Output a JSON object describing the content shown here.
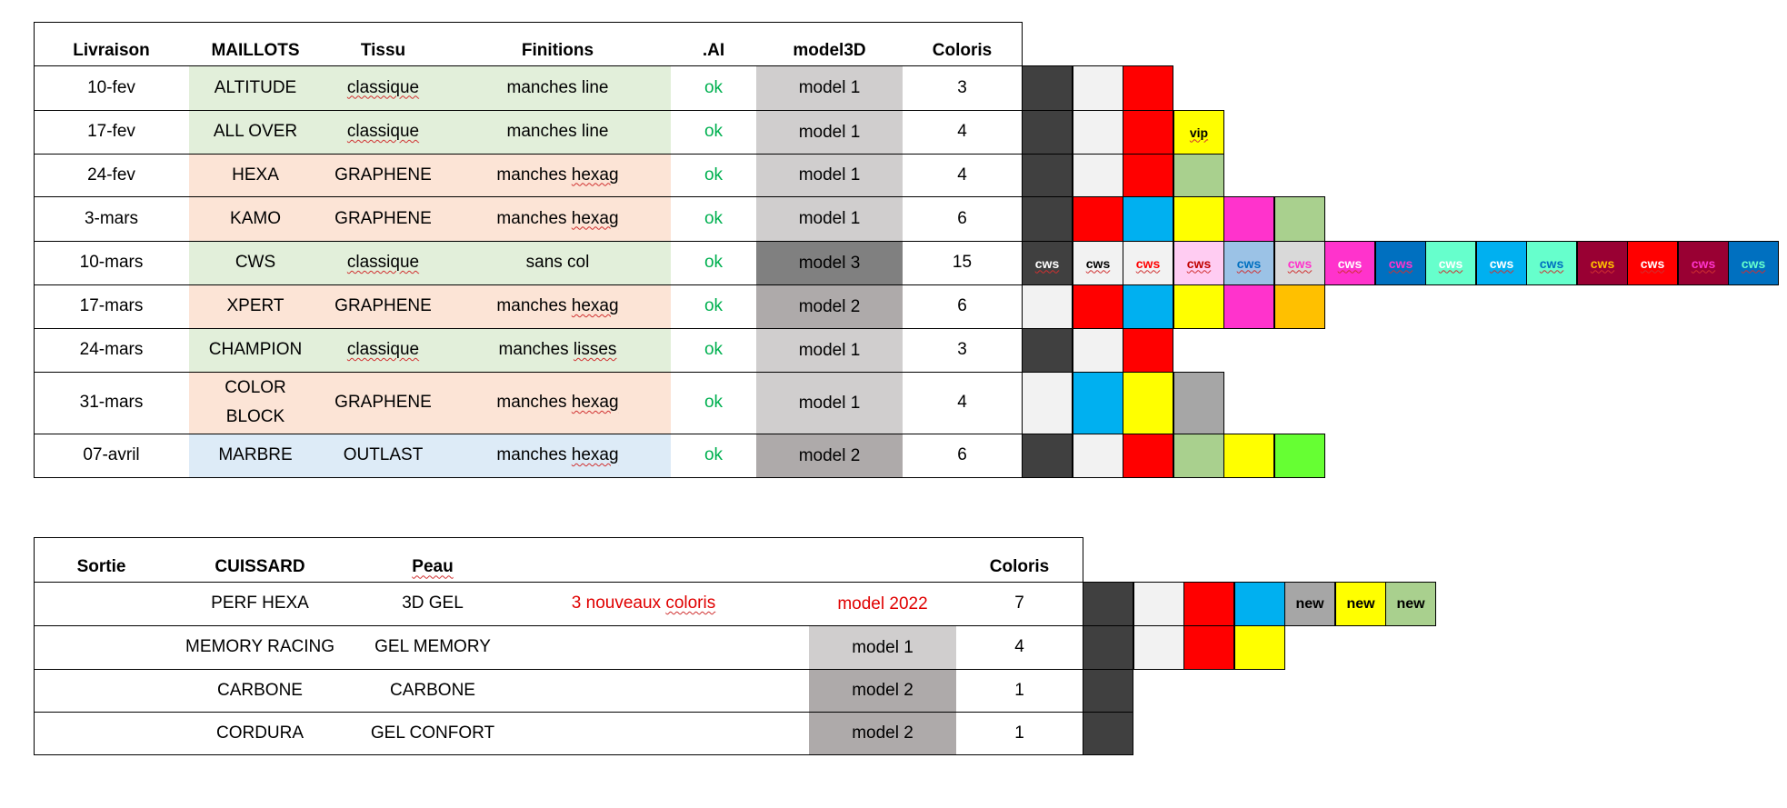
{
  "colors": {
    "light_green": "#e2efda",
    "light_orange": "#fce4d6",
    "light_blue": "#ddebf7",
    "gray_1": "#d0cece",
    "gray_2": "#aeaaaa",
    "gray_3": "#808080",
    "ok_green": "#00b050",
    "red_text": "#e00000"
  },
  "maillots": {
    "headers": {
      "livraison": "Livraison",
      "maillots": "MAILLOTS",
      "tissu": "Tissu",
      "finitions": "Finitions",
      "ai": ".AI",
      "model3d": "model3D",
      "coloris": "Coloris"
    },
    "rows": [
      {
        "livraison": "10-fev",
        "maillot": "ALTITUDE",
        "tissu": "classique",
        "finitions": "manches line",
        "ai": "ok",
        "model": "model 1",
        "coloris": "3",
        "bg": "light_green",
        "model_bg": "gray_1",
        "swatches": [
          {
            "color": "#404040"
          },
          {
            "color": "#f2f2f2"
          },
          {
            "color": "#ff0000"
          }
        ]
      },
      {
        "livraison": "17-fev",
        "maillot": "ALL OVER",
        "tissu": "classique",
        "finitions": "manches line",
        "ai": "ok",
        "model": "model 1",
        "coloris": "4",
        "bg": "light_green",
        "model_bg": "gray_1",
        "swatches": [
          {
            "color": "#404040"
          },
          {
            "color": "#f2f2f2"
          },
          {
            "color": "#ff0000"
          },
          {
            "color": "#ffff00",
            "label": "vip",
            "label_color": "#000000"
          }
        ]
      },
      {
        "livraison": "24-fev",
        "maillot": "HEXA",
        "tissu": "GRAPHENE",
        "finitions": "manches hexag",
        "ai": "ok",
        "model": "model 1",
        "coloris": "4",
        "bg": "light_orange",
        "model_bg": "gray_1",
        "swatches": [
          {
            "color": "#404040"
          },
          {
            "color": "#f2f2f2"
          },
          {
            "color": "#ff0000"
          },
          {
            "color": "#a9d08e"
          }
        ]
      },
      {
        "livraison": "3-mars",
        "maillot": "KAMO",
        "tissu": "GRAPHENE",
        "finitions": "manches hexag",
        "ai": "ok",
        "model": "model 1",
        "coloris": "6",
        "bg": "light_orange",
        "model_bg": "gray_1",
        "swatches": [
          {
            "color": "#404040"
          },
          {
            "color": "#ff0000"
          },
          {
            "color": "#00b0f0"
          },
          {
            "color": "#ffff00"
          },
          {
            "color": "#ff33cc"
          },
          {
            "color": "#a9d08e"
          }
        ]
      },
      {
        "livraison": "10-mars",
        "maillot": "CWS",
        "tissu": "classique",
        "finitions": "sans col",
        "ai": "ok",
        "model": "model 3",
        "coloris": "15",
        "bg": "light_green",
        "model_bg": "gray_3",
        "swatches": [
          {
            "color": "#404040",
            "label": "cws",
            "label_color": "#ffffff"
          },
          {
            "color": "#f2f2f2",
            "label": "cws",
            "label_color": "#000000"
          },
          {
            "color": "#f2f2f2",
            "label": "cws",
            "label_color": "#ff0000"
          },
          {
            "color": "#ffccf2",
            "label": "cws",
            "label_color": "#c00000"
          },
          {
            "color": "#9bc2e6",
            "label": "cws",
            "label_color": "#0070c0"
          },
          {
            "color": "#d9d9d9",
            "label": "cws",
            "label_color": "#ff33cc"
          },
          {
            "color": "#ff33cc",
            "label": "cws",
            "label_color": "#ffffff"
          },
          {
            "color": "#0070c0",
            "label": "cws",
            "label_color": "#ff33cc"
          },
          {
            "color": "#66ffcc",
            "label": "cws",
            "label_color": "#ffffff"
          },
          {
            "color": "#00b0f0",
            "label": "cws",
            "label_color": "#ffffff"
          },
          {
            "color": "#66ffcc",
            "label": "cws",
            "label_color": "#0070c0"
          },
          {
            "color": "#990033",
            "label": "cws",
            "label_color": "#ffc000"
          },
          {
            "color": "#ff0000",
            "label": "cws",
            "label_color": "#ffffff"
          },
          {
            "color": "#990033",
            "label": "cws",
            "label_color": "#ff33cc"
          },
          {
            "color": "#0070c0",
            "label": "cws",
            "label_color": "#66ffcc"
          }
        ]
      },
      {
        "livraison": "17-mars",
        "maillot": "XPERT",
        "tissu": "GRAPHENE",
        "finitions": "manches hexag",
        "ai": "ok",
        "model": "model 2",
        "coloris": "6",
        "bg": "light_orange",
        "model_bg": "gray_2",
        "swatches": [
          {
            "color": "#f2f2f2"
          },
          {
            "color": "#ff0000"
          },
          {
            "color": "#00b0f0"
          },
          {
            "color": "#ffff00"
          },
          {
            "color": "#ff33cc"
          },
          {
            "color": "#ffc000"
          }
        ]
      },
      {
        "livraison": "24-mars",
        "maillot": "CHAMPION",
        "tissu": "classique",
        "finitions": "manches lisses",
        "ai": "ok",
        "model": "model 1",
        "coloris": "3",
        "bg": "light_green",
        "model_bg": "gray_1",
        "swatches": [
          {
            "color": "#404040"
          },
          {
            "color": "#f2f2f2"
          },
          {
            "color": "#ff0000"
          }
        ]
      },
      {
        "livraison": "31-mars",
        "maillot": "COLOR BLOCK",
        "maillot_line1": "COLOR",
        "maillot_line2": "BLOCK",
        "tissu": "GRAPHENE",
        "finitions": "manches hexag",
        "ai": "ok",
        "model": "model 1",
        "coloris": "4",
        "bg": "light_orange",
        "model_bg": "gray_1",
        "swatches": [
          {
            "color": "#f2f2f2"
          },
          {
            "color": "#00b0f0"
          },
          {
            "color": "#ffff00"
          },
          {
            "color": "#a6a6a6"
          }
        ]
      },
      {
        "livraison": "07-avril",
        "maillot": "MARBRE",
        "tissu": "OUTLAST",
        "finitions": "manches hexag",
        "ai": "ok",
        "model": "model 2",
        "coloris": "6",
        "bg": "light_blue",
        "model_bg": "gray_2",
        "swatches": [
          {
            "color": "#404040"
          },
          {
            "color": "#f2f2f2"
          },
          {
            "color": "#ff0000"
          },
          {
            "color": "#a9d08e"
          },
          {
            "color": "#ffff00"
          },
          {
            "color": "#66ff33"
          }
        ]
      }
    ]
  },
  "cuissards": {
    "headers": {
      "sortie": "Sortie",
      "cuissard": "CUISSARD",
      "peau": "Peau",
      "coloris": "Coloris"
    },
    "rows": [
      {
        "sortie": "",
        "cuissard": "PERF HEXA",
        "peau": "3D GEL",
        "note": "3 nouveaux coloris",
        "model": "model 2022",
        "model_style": "red",
        "coloris": "7",
        "swatches": [
          {
            "color": "#404040"
          },
          {
            "color": "#f2f2f2"
          },
          {
            "color": "#ff0000"
          },
          {
            "color": "#00b0f0"
          },
          {
            "color": "#a6a6a6",
            "label": "new",
            "label_color": "#000000"
          },
          {
            "color": "#ffff00",
            "label": "new",
            "label_color": "#000000"
          },
          {
            "color": "#a9d08e",
            "label": "new",
            "label_color": "#000000"
          }
        ]
      },
      {
        "sortie": "",
        "cuissard": "MEMORY RACING",
        "peau": "GEL MEMORY",
        "note": "",
        "model": "model 1",
        "model_style": "gray_1",
        "coloris": "4",
        "swatches": [
          {
            "color": "#404040"
          },
          {
            "color": "#f2f2f2"
          },
          {
            "color": "#ff0000"
          },
          {
            "color": "#ffff00"
          }
        ]
      },
      {
        "sortie": "",
        "cuissard": "CARBONE",
        "peau": "CARBONE",
        "note": "",
        "model": "model 2",
        "model_style": "gray_2",
        "coloris": "1",
        "swatches": [
          {
            "color": "#404040"
          }
        ]
      },
      {
        "sortie": "",
        "cuissard": "CORDURA",
        "peau": "GEL CONFORT",
        "note": "",
        "model": "model 2",
        "model_style": "gray_2",
        "coloris": "1",
        "swatches": [
          {
            "color": "#404040"
          }
        ]
      }
    ]
  }
}
